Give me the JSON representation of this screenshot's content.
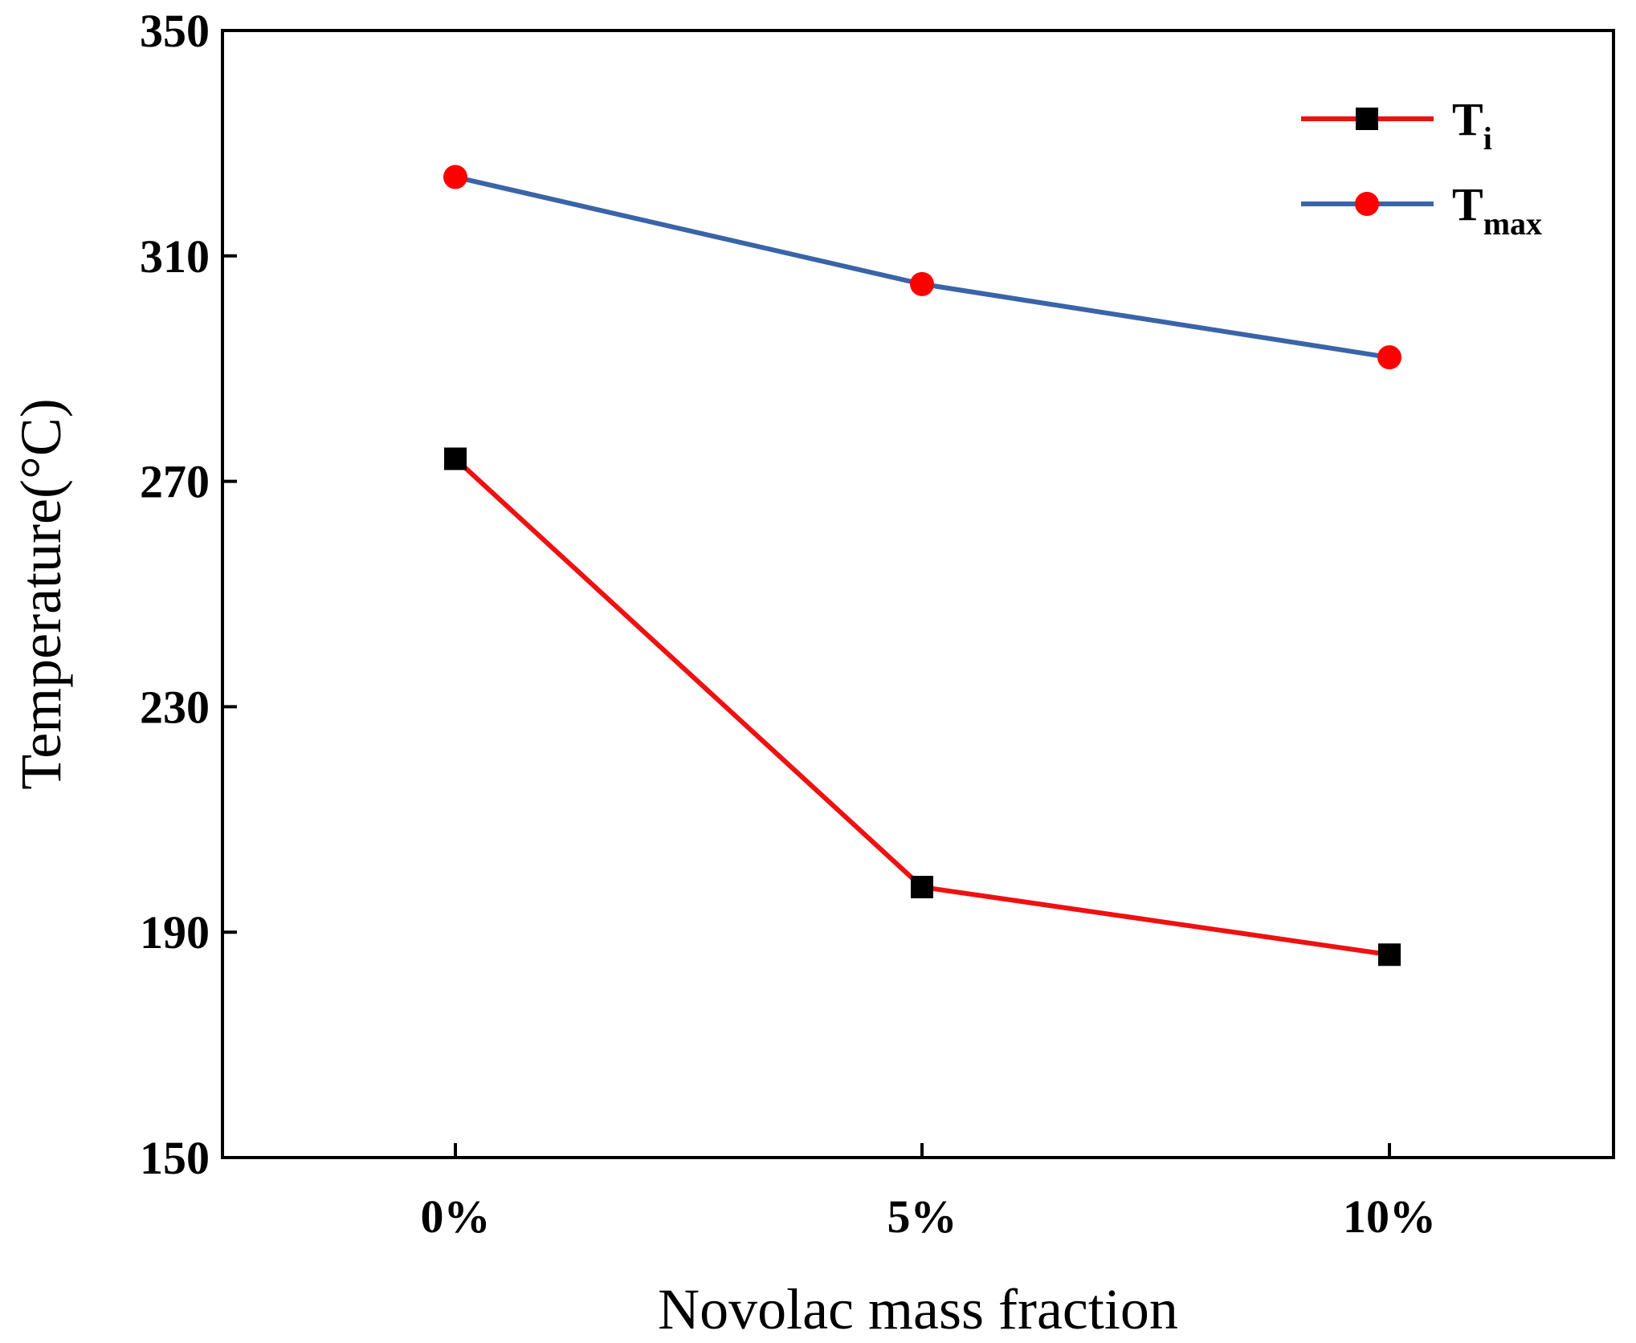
{
  "chart_data": {
    "type": "line",
    "title": "",
    "xlabel": "Novolac mass fraction",
    "ylabel": "Temperature(°C)",
    "categories": [
      "0%",
      "5%",
      "10%"
    ],
    "ylim": [
      150,
      350
    ],
    "yticks": [
      150,
      190,
      230,
      270,
      310,
      350
    ],
    "grid": false,
    "legend_position": "top-right",
    "series": [
      {
        "name": "Ti",
        "label_main": "T",
        "label_sub": "i",
        "values": [
          274,
          198,
          186
        ],
        "line_color": "#ee1111",
        "marker": "square",
        "marker_color": "#000000"
      },
      {
        "name": "Tmax",
        "label_main": "T",
        "label_sub": "max",
        "values": [
          324,
          305,
          292
        ],
        "line_color": "#3a64a8",
        "marker": "circle",
        "marker_color": "#ff0000"
      }
    ]
  }
}
